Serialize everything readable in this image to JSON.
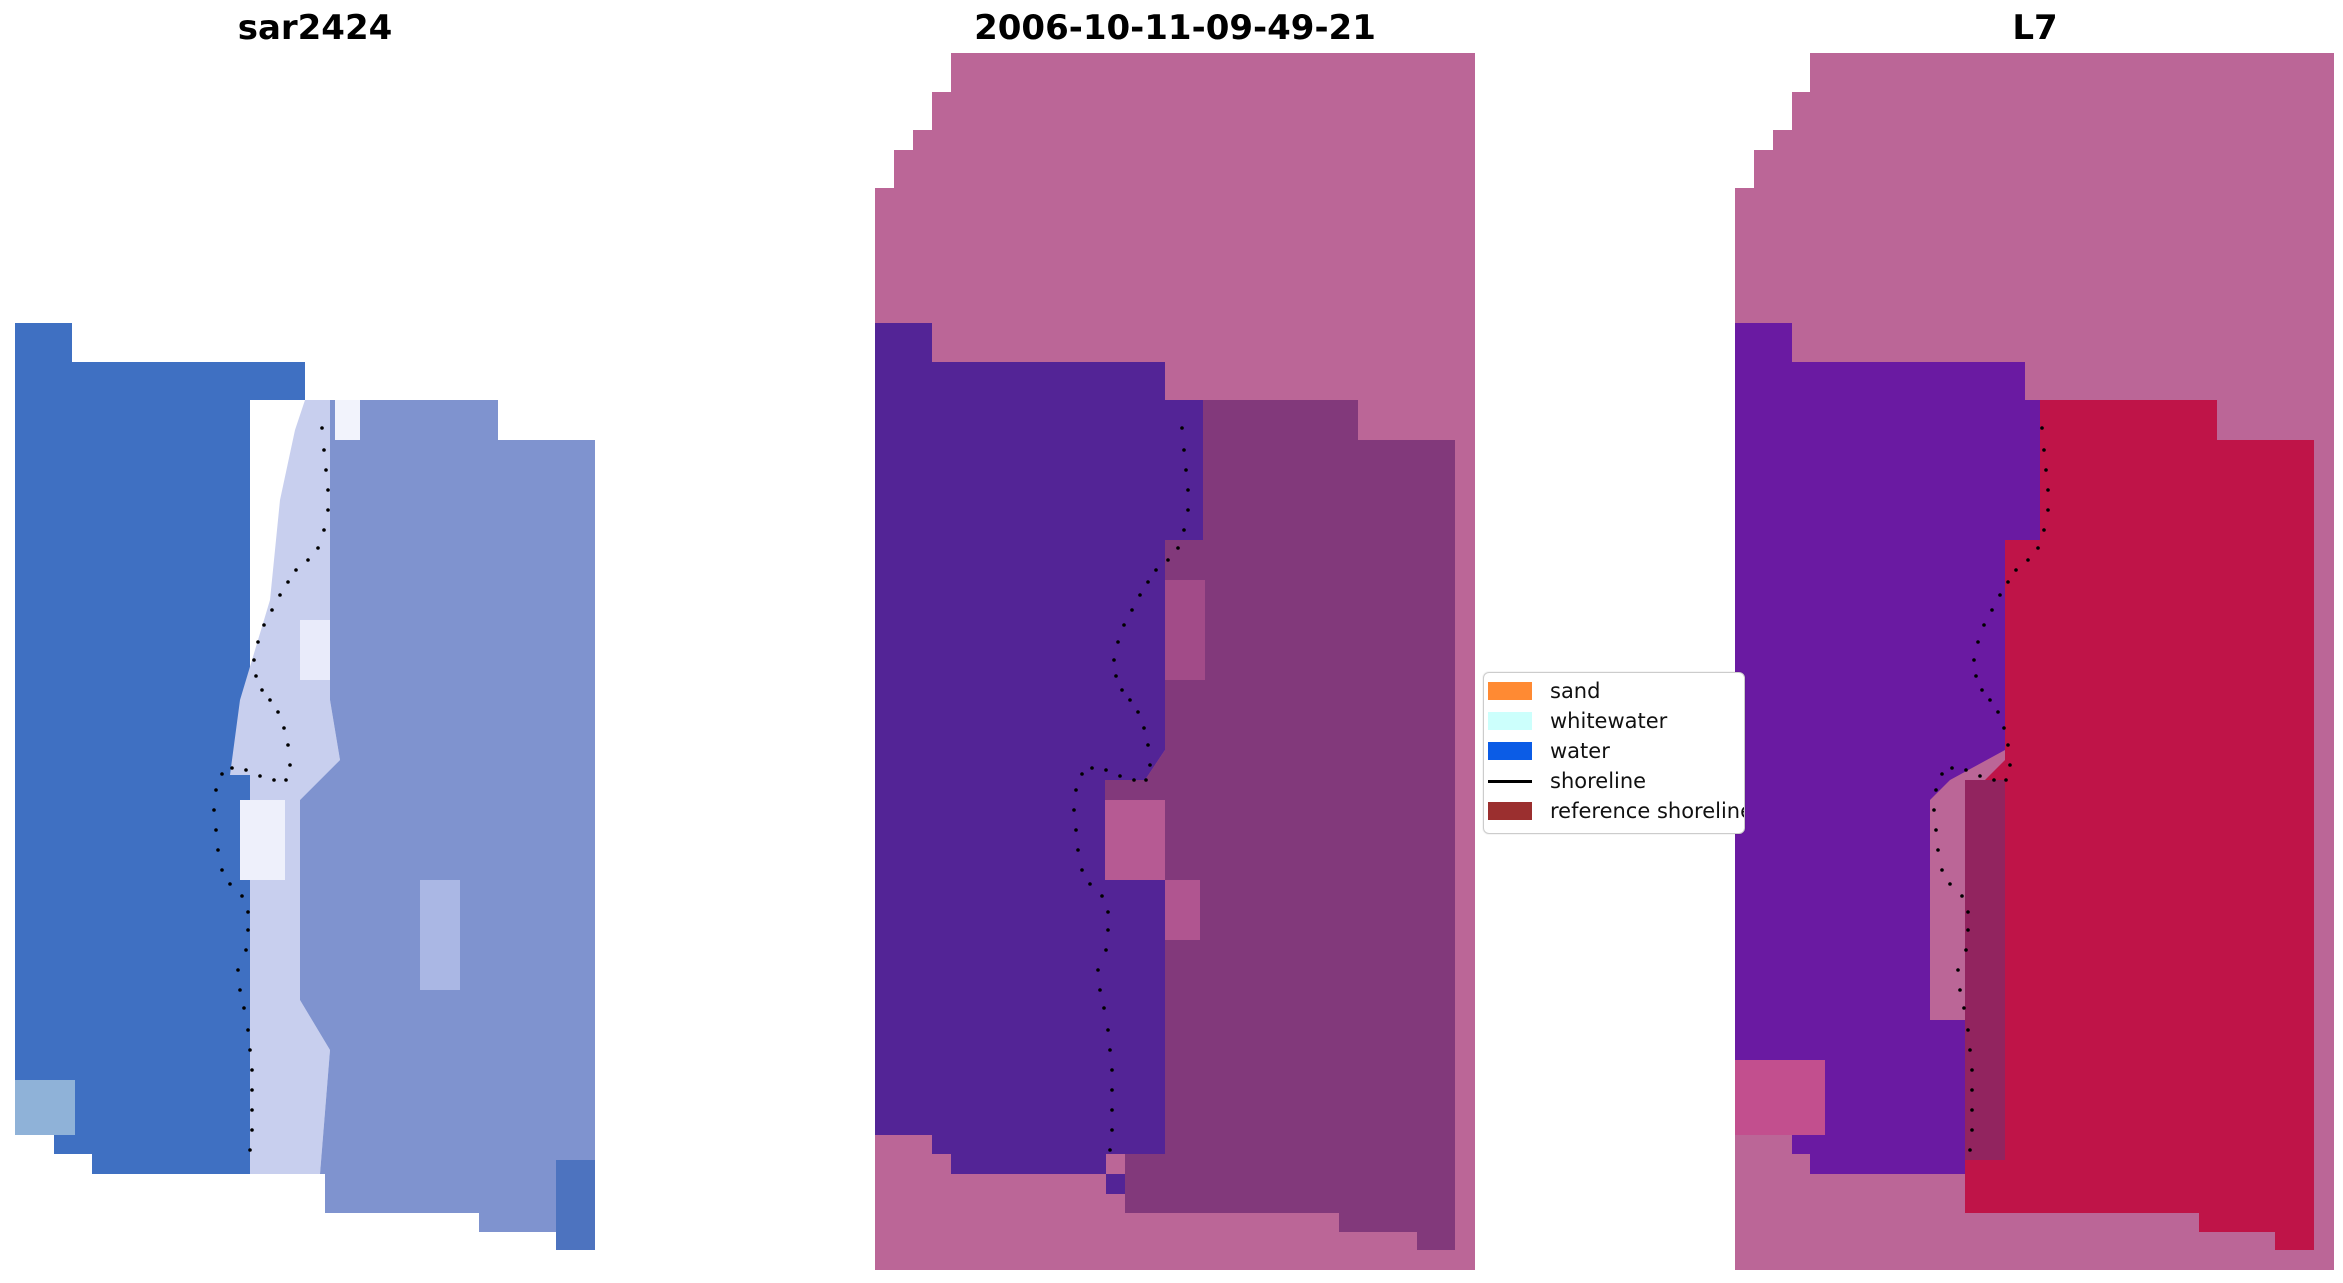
{
  "panels": [
    {
      "title": "sar2424"
    },
    {
      "title": "2006-10-11-09-49-21"
    },
    {
      "title": "L7"
    }
  ],
  "legend": {
    "items": [
      {
        "label": "sand",
        "kind": "patch",
        "color": "#ff8a33"
      },
      {
        "label": "whitewater",
        "kind": "patch",
        "color": "#ccfffc"
      },
      {
        "label": "water",
        "kind": "patch",
        "color": "#0b5ce6"
      },
      {
        "label": "shoreline",
        "kind": "line",
        "color": "#000000"
      },
      {
        "label": "reference shoreline",
        "kind": "patch",
        "color": "#9b2f2f"
      }
    ]
  },
  "colors": {
    "rgb_ocean": "#3f70c2",
    "rgb_beach": "#c8cfee",
    "rgb_land": "#7f93cf",
    "mask_background": "#bb6697",
    "class_water": "#532496",
    "class_land": "#82397b",
    "ndwi_background": "#bb6697",
    "ndwi_water": "#6a1aa2",
    "ndwi_land": "#bf1448",
    "shoreline_dots": "#000000"
  }
}
